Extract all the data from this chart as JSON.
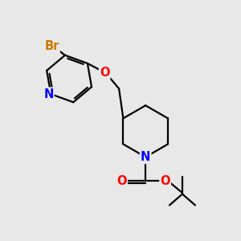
{
  "bg_color": "#e8e8e8",
  "bond_color": "#000000",
  "bond_width": 1.6,
  "atom_colors": {
    "Br": "#cc7700",
    "N": "#0000ff",
    "O": "#ff0000",
    "C": "#000000"
  },
  "font_size": 10.5
}
